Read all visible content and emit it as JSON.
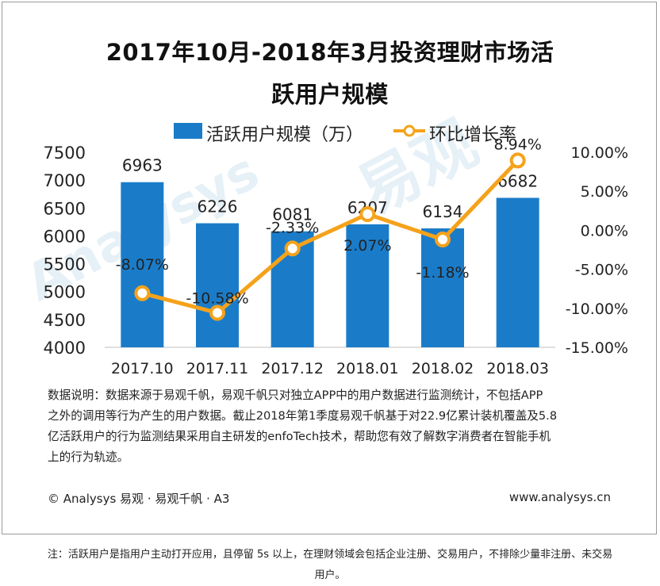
{
  "chart_data": {
    "type": "bar",
    "title": "2017年10月-2018年3月投资理财市场活",
    "subtitle": "跃用户规模",
    "categories": [
      "2017.10",
      "2017.11",
      "2017.12",
      "2018.01",
      "2018.02",
      "2018.03"
    ],
    "series": [
      {
        "name": "活跃用户规模（万）",
        "type": "bar",
        "axis": "left",
        "color": "#1a7cc9",
        "values": [
          6963,
          6226,
          6081,
          6207,
          6134,
          6682
        ],
        "labels": [
          "6963",
          "6226",
          "6081",
          "6207",
          "6134",
          "6682"
        ]
      },
      {
        "name": "环比增长率",
        "type": "line",
        "axis": "right",
        "color": "#f5a21b",
        "values": [
          -8.07,
          -10.58,
          -2.33,
          2.07,
          -1.18,
          8.94
        ],
        "labels": [
          "-8.07%",
          "-10.58%",
          "-2.33%",
          "2.07%",
          "-1.18%",
          "8.94%"
        ]
      }
    ],
    "y_left": {
      "range": [
        4000,
        7500
      ],
      "ticks": [
        "4000",
        "4500",
        "5000",
        "5500",
        "6000",
        "6500",
        "7000",
        "7500"
      ]
    },
    "y_right": {
      "range": [
        -15,
        10
      ],
      "ticks": [
        "-15.00%",
        "-10.00%",
        "-5.00%",
        "0.00%",
        "5.00%",
        "10.00%"
      ]
    },
    "grid": false,
    "legend_position": "top"
  },
  "texts": {
    "title_line1": "2017年10月-2018年3月投资理财市场活",
    "title_line2": "跃用户规模",
    "legend_bar": "活跃用户规模（万）",
    "legend_line": "环比增长率",
    "note_line1": "数据说明：数据来源于易观千帆，易观千帆只对独立APP中的用户数据进行监测统计，不包括APP",
    "note_line2": "之外的调用等行为产生的用户数据。截止2018年第1季度易观千帆基于对22.9亿累计装机覆盖及5.8",
    "note_line3": "亿活跃用户的行为监测结果采用自主研发的enfoTech技术，帮助您有效了解数字消费者在智能手机",
    "note_line4": "上的行为轨迹。",
    "footer_left": "© Analysys 易观 · 易观千帆 · A3",
    "footer_right": "www.analysys.cn",
    "bottom_note_line1": "注：活跃用户是指用户主动打开应用，且停留 5s 以上，在理财领域会包括企业注册、交易用户，不排除少量非注册、未交易",
    "bottom_note_line2": "用户。",
    "watermark_text": "易观",
    "watermark_latin": "Analysys"
  }
}
